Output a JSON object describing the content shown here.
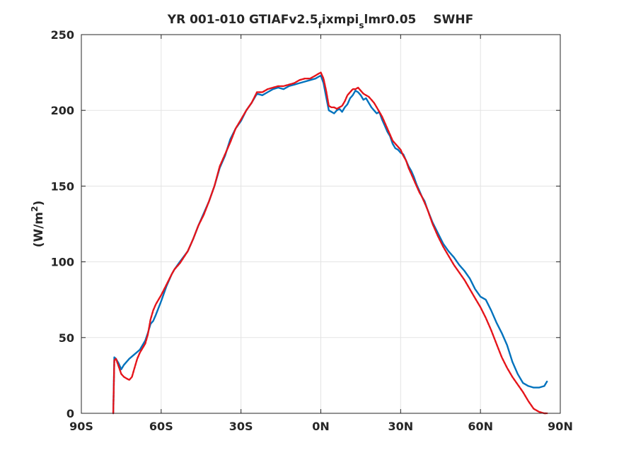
{
  "chart_data": {
    "type": "line",
    "title": {
      "part1": "YR 001-010 GTIAFv2.5",
      "sub1": "f",
      "part2": "ixmpi",
      "sub2": "s",
      "part3": "lmr0.05",
      "part4": "SWHF"
    },
    "xlabel": "",
    "ylabel": {
      "text": "(W/m",
      "sup": "2",
      "close": ")"
    },
    "xlim": [
      -90,
      90
    ],
    "ylim": [
      0,
      250
    ],
    "grid": true,
    "legend": "none",
    "x_ticks": [
      {
        "value": -90,
        "label": "90S"
      },
      {
        "value": -60,
        "label": "60S"
      },
      {
        "value": -30,
        "label": "30S"
      },
      {
        "value": 0,
        "label": "0N"
      },
      {
        "value": 30,
        "label": "30N"
      },
      {
        "value": 60,
        "label": "60N"
      },
      {
        "value": 90,
        "label": "90N"
      }
    ],
    "y_ticks": [
      {
        "value": 0,
        "label": "0"
      },
      {
        "value": 50,
        "label": "50"
      },
      {
        "value": 100,
        "label": "100"
      },
      {
        "value": 150,
        "label": "150"
      },
      {
        "value": 200,
        "label": "200"
      },
      {
        "value": 250,
        "label": "250"
      }
    ],
    "series": [
      {
        "color": "#0072BD",
        "style": "solid",
        "x": [
          -78,
          -77.6,
          -77,
          -76,
          -75,
          -74,
          -72,
          -70,
          -68,
          -66,
          -65,
          -64,
          -63,
          -62,
          -60,
          -58,
          -56,
          -55,
          -53,
          -50,
          -48,
          -46,
          -44,
          -42,
          -40,
          -38,
          -36,
          -34,
          -32,
          -30,
          -28,
          -26,
          -24,
          -22,
          -20,
          -18,
          -16,
          -14,
          -12,
          -10,
          -8,
          -6,
          -4,
          -2,
          -1,
          0,
          1,
          2,
          3,
          4,
          5,
          6,
          7,
          8,
          9,
          10,
          11,
          12,
          13,
          14,
          15,
          16,
          17,
          18,
          19,
          20,
          21,
          22,
          23,
          24,
          25,
          26,
          27,
          28,
          29,
          30,
          31,
          32,
          33,
          34,
          35,
          36,
          37,
          38,
          39,
          40,
          42,
          44,
          46,
          48,
          50,
          52,
          54,
          56,
          58,
          60,
          62,
          64,
          66,
          68,
          70,
          72,
          74,
          76,
          78,
          80,
          82,
          84,
          85
        ],
        "y": [
          0,
          37,
          36,
          33,
          29,
          32,
          36,
          39,
          42,
          48,
          53,
          59,
          61,
          65,
          74,
          84,
          92,
          95,
          100,
          107,
          115,
          124,
          132,
          140,
          150,
          162,
          170,
          181,
          188,
          193,
          200,
          205,
          211,
          210,
          212,
          214,
          215,
          214,
          216,
          217,
          218,
          219,
          220,
          221,
          222,
          223,
          218,
          209,
          200,
          199,
          198,
          200,
          201,
          199,
          202,
          204,
          208,
          210,
          213,
          212,
          210,
          207,
          208,
          205,
          202,
          200,
          198,
          199,
          194,
          190,
          186,
          183,
          178,
          175,
          174,
          172,
          171,
          167,
          163,
          160,
          156,
          151,
          147,
          143,
          140,
          135,
          126,
          119,
          112,
          107,
          103,
          98,
          94,
          89,
          82,
          77,
          75,
          68,
          60,
          53,
          45,
          34,
          26,
          20,
          18,
          17,
          17,
          18,
          21
        ]
      },
      {
        "color": "#E5141A",
        "style": "dashed",
        "x": [
          -78,
          -77.6,
          -77,
          -76,
          -75,
          -74,
          -73,
          -72,
          -71,
          -70,
          -69,
          -68,
          -66,
          -65,
          -64,
          -63,
          -62,
          -60,
          -58,
          -56,
          -55,
          -53,
          -50,
          -48,
          -46,
          -44,
          -42,
          -40,
          -38,
          -36,
          -34,
          -32,
          -30,
          -28,
          -26,
          -24,
          -22,
          -20,
          -18,
          -16,
          -14,
          -12,
          -10,
          -8,
          -6,
          -4,
          -2,
          -1,
          0,
          1,
          2,
          3,
          4,
          5,
          6,
          7,
          8,
          9,
          10,
          11,
          12,
          13,
          14,
          15,
          16,
          17,
          18,
          19,
          20,
          21,
          22,
          23,
          24,
          25,
          26,
          27,
          28,
          29,
          30,
          31,
          32,
          33,
          34,
          35,
          36,
          37,
          38,
          39,
          40,
          42,
          44,
          46,
          48,
          50,
          52,
          54,
          56,
          58,
          60,
          62,
          64,
          66,
          68,
          70,
          72,
          74,
          76,
          78,
          80,
          82,
          84,
          85
        ],
        "y": [
          0,
          35,
          36,
          31,
          26,
          24,
          23,
          22,
          24,
          30,
          36,
          40,
          46,
          52,
          62,
          68,
          72,
          78,
          85,
          92,
          95,
          99,
          107,
          115,
          124,
          131,
          140,
          150,
          163,
          171,
          179,
          188,
          194,
          200,
          205,
          212,
          212,
          214,
          215,
          216,
          216,
          217,
          218,
          220,
          221,
          221,
          223,
          224,
          225,
          221,
          213,
          203,
          202,
          202,
          201,
          202,
          203,
          206,
          210,
          212,
          214,
          214,
          215,
          213,
          211,
          210,
          209,
          207,
          205,
          202,
          199,
          196,
          192,
          188,
          184,
          180,
          178,
          176,
          174,
          170,
          167,
          162,
          158,
          154,
          150,
          146,
          143,
          139,
          135,
          125,
          117,
          110,
          104,
          98,
          93,
          88,
          82,
          76,
          70,
          63,
          55,
          46,
          37,
          30,
          24,
          19,
          14,
          8,
          3,
          1,
          0,
          0
        ]
      }
    ]
  }
}
